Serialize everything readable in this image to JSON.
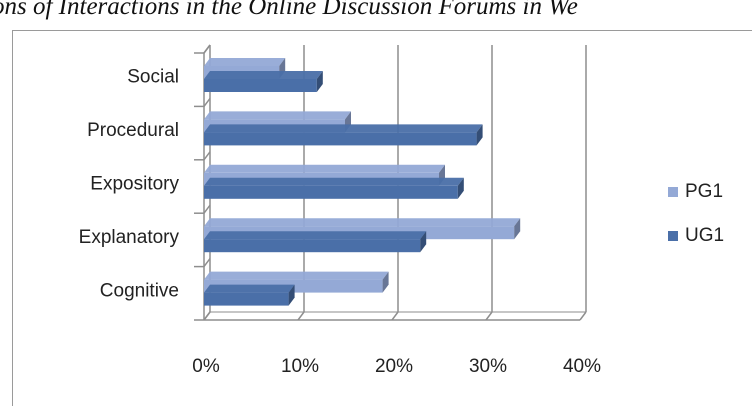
{
  "caption": "ons of Interactions in the Online Discussion Forums in We",
  "chart_data": {
    "type": "bar",
    "orientation": "horizontal",
    "style": "3d",
    "categories": [
      "Social",
      "Procedural",
      "Expository",
      "Explanatory",
      "Cognitive"
    ],
    "series": [
      {
        "name": "PG1",
        "values": [
          8,
          15,
          25,
          33,
          19
        ],
        "color": "#94a9d6"
      },
      {
        "name": "UG1",
        "values": [
          12,
          29,
          27,
          23,
          9
        ],
        "color": "#4a6fa8"
      }
    ],
    "xlim": [
      0,
      40
    ],
    "xticks": [
      "0%",
      "10%",
      "20%",
      "30%",
      "40%"
    ],
    "xtick_values": [
      0,
      10,
      20,
      30,
      40
    ],
    "grid": true,
    "legend": "right"
  }
}
